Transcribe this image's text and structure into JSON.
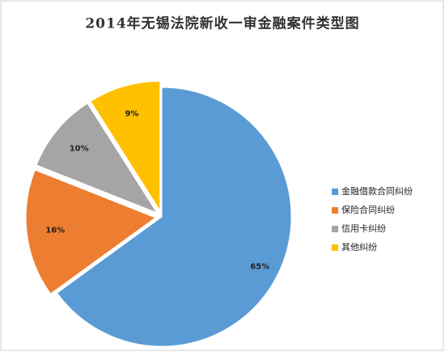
{
  "chart_data": {
    "type": "pie",
    "title": "2014年无锡法院新收一审金融案件类型图",
    "categories": [
      "金融借款合同纠纷",
      "保险合同纠纷",
      "信用卡纠纷",
      "其他纠纷"
    ],
    "values": [
      65,
      16,
      10,
      9
    ],
    "value_labels": [
      "65%",
      "16%",
      "10%",
      "9%"
    ],
    "colors": [
      "#5b9bd5",
      "#ed7d31",
      "#a5a5a5",
      "#ffc000"
    ],
    "legend": "right"
  }
}
